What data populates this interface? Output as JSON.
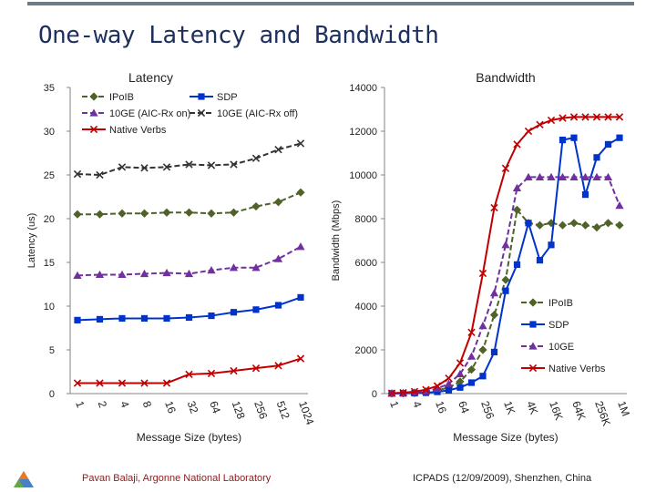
{
  "slide": {
    "title": "One-way Latency and Bandwidth",
    "footer_left": "Pavan Balaji, Argonne National Laboratory",
    "footer_right": "ICPADS (12/09/2009), Shenzhen, China"
  },
  "colors": {
    "ipoib": "#4f6228",
    "sdp": "#0033cc",
    "tengbe": "#7030a0",
    "tengbe_off": "#333333",
    "native": "#c00000",
    "axis": "#868686",
    "text": "#222222"
  },
  "chart_data": [
    {
      "type": "line",
      "title": "Latency",
      "xlabel": "Message Size (bytes)",
      "ylabel": "Latency (us)",
      "ylim": [
        0,
        35
      ],
      "yticks": [
        "0",
        "5",
        "10",
        "15",
        "20",
        "25",
        "30",
        "35"
      ],
      "categories": [
        "1",
        "2",
        "4",
        "8",
        "16",
        "32",
        "64",
        "128",
        "256",
        "512",
        "1024"
      ],
      "grid": false,
      "legend": "top",
      "series": [
        {
          "name": "IPoIB",
          "color": "#4f6228",
          "marker": "diamond",
          "dash": "6,3",
          "values": [
            20.5,
            20.5,
            20.6,
            20.6,
            20.7,
            20.7,
            20.6,
            20.7,
            21.4,
            21.9,
            23.0
          ]
        },
        {
          "name": "SDP",
          "color": "#0033cc",
          "marker": "square",
          "dash": "",
          "values": [
            8.4,
            8.5,
            8.6,
            8.6,
            8.6,
            8.7,
            8.9,
            9.3,
            9.6,
            10.1,
            11.0
          ]
        },
        {
          "name": "10GE (AIC-Rx on)",
          "color": "#7030a0",
          "marker": "triangle",
          "dash": "6,3",
          "values": [
            13.5,
            13.6,
            13.6,
            13.7,
            13.8,
            13.7,
            14.1,
            14.4,
            14.4,
            15.4,
            16.8
          ]
        },
        {
          "name": "10GE (AIC-Rx off)",
          "color": "#333333",
          "marker": "x",
          "dash": "6,3",
          "values": [
            25.1,
            25.0,
            25.9,
            25.8,
            25.9,
            26.2,
            26.1,
            26.2,
            26.9,
            27.9,
            28.6
          ]
        },
        {
          "name": "Native Verbs",
          "color": "#c00000",
          "marker": "x",
          "dash": "",
          "values": [
            1.2,
            1.2,
            1.2,
            1.2,
            1.2,
            2.2,
            2.3,
            2.6,
            2.9,
            3.2,
            4.0
          ]
        }
      ]
    },
    {
      "type": "line",
      "title": "Bandwidth",
      "xlabel": "Message Size (bytes)",
      "ylabel": "Bandwidth (Mbps)",
      "ylim": [
        0,
        14000
      ],
      "yticks": [
        "0",
        "2000",
        "4000",
        "6000",
        "8000",
        "10000",
        "12000",
        "14000"
      ],
      "categories": [
        "1",
        "",
        "4",
        "",
        "16",
        "",
        "64",
        "",
        "256",
        "",
        "1K",
        "",
        "4K",
        "",
        "16K",
        "",
        "64K",
        "",
        "256K",
        "",
        "1M"
      ],
      "grid": false,
      "legend": "right",
      "series": [
        {
          "name": "IPoIB",
          "color": "#4f6228",
          "marker": "diamond",
          "dash": "6,3",
          "values": [
            5,
            15,
            30,
            70,
            140,
            280,
            550,
            1100,
            2000,
            3600,
            5200,
            8400,
            7800,
            7700,
            7800,
            7700,
            7800,
            7700,
            7600,
            7800,
            7700
          ]
        },
        {
          "name": "SDP",
          "color": "#0033cc",
          "marker": "square",
          "dash": "",
          "values": [
            5,
            10,
            20,
            40,
            80,
            150,
            280,
            500,
            800,
            1900,
            4700,
            5900,
            7800,
            6100,
            6800,
            11600,
            11700,
            9100,
            10800,
            11400,
            11700
          ]
        },
        {
          "name": "10GE",
          "color": "#7030a0",
          "marker": "triangle",
          "dash": "6,3",
          "values": [
            10,
            25,
            55,
            110,
            230,
            450,
            900,
            1700,
            3100,
            4600,
            6800,
            9400,
            9900,
            9900,
            9900,
            9900,
            9900,
            9900,
            9900,
            9900,
            8600
          ]
        },
        {
          "name": "Native Verbs",
          "color": "#c00000",
          "marker": "x",
          "dash": "",
          "values": [
            20,
            40,
            90,
            180,
            350,
            700,
            1400,
            2800,
            5500,
            8500,
            10300,
            11400,
            12000,
            12300,
            12500,
            12600,
            12650,
            12650,
            12650,
            12650,
            12650
          ]
        }
      ]
    }
  ]
}
